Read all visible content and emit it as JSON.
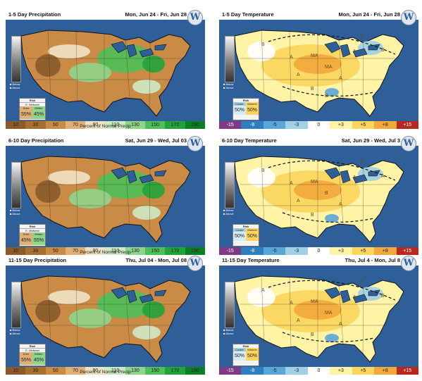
{
  "panels": [
    {
      "kind": "precip",
      "title": "1-5 Day Precipitation",
      "date_range": "Mon, Jun 24 - Fri, Jun 28",
      "logo": "W",
      "confidence": {
        "label": "Confidence",
        "levels": [
          "Below",
          "Above"
        ]
      },
      "risk": {
        "title": "Risk",
        "subtitle": "E. Midwest",
        "labels": [
          "Drier",
          "Wetter"
        ],
        "values": [
          "55%",
          "45%"
        ]
      },
      "legend": [
        "10",
        "30",
        "50",
        "70",
        "90",
        "110",
        "130",
        "150",
        "170",
        "190"
      ],
      "legend_caption": "Percent of Normal Precip",
      "map_labels": []
    },
    {
      "kind": "temp",
      "title": "1-5 Day Temperature",
      "date_range": "Mon, Jun 24 - Fri, Jun 28",
      "logo": "W",
      "confidence": {
        "label": "Confidence",
        "levels": [
          "Below",
          "Above"
        ]
      },
      "risk": {
        "title": "Risk",
        "subtitle": "",
        "labels": [
          "Cooler",
          "Warmer"
        ],
        "values": [
          "50%",
          "50%"
        ]
      },
      "legend": [
        "-15",
        "-8",
        "-5",
        "-3",
        "0",
        "+3",
        "+5",
        "+8",
        "+15"
      ],
      "legend_caption": "",
      "map_labels": [
        "MA",
        "MA",
        "B",
        "B",
        "A",
        "A",
        "A",
        "A",
        "B",
        "B",
        "B"
      ]
    },
    {
      "kind": "precip",
      "title": "6-10 Day Precipitation",
      "date_range": "Sat, Jun 29 - Wed, Jul 03",
      "logo": "W",
      "confidence": {
        "label": "Confidence",
        "levels": [
          "Below",
          "Above"
        ]
      },
      "risk": {
        "title": "Risk",
        "subtitle": "E. Midwest",
        "labels": [
          "Drier",
          "Wetter"
        ],
        "values": [
          "45%",
          "55%"
        ]
      },
      "legend": [
        "10",
        "30",
        "50",
        "70",
        "90",
        "110",
        "130",
        "150",
        "170",
        "190"
      ],
      "legend_caption": "Percent of Normal Precip",
      "map_labels": []
    },
    {
      "kind": "temp",
      "title": "6-10 Day Temperature",
      "date_range": "Sat, Jun 29 - Wed, Jul 3",
      "logo": "W",
      "confidence": {
        "label": "Confidence",
        "levels": [
          "Below",
          "Above"
        ]
      },
      "risk": {
        "title": "Risk",
        "subtitle": "",
        "labels": [
          "Cooler",
          "Warmer"
        ],
        "values": [
          "50%",
          "50%"
        ]
      },
      "legend": [
        "-15",
        "-8",
        "-5",
        "-3",
        "0",
        "+3",
        "+5",
        "+8",
        "+15"
      ],
      "legend_caption": "",
      "map_labels": [
        "MA",
        "B",
        "B",
        "A",
        "A",
        "A",
        "A",
        "A",
        "B",
        "B"
      ]
    },
    {
      "kind": "precip",
      "title": "11-15 Day Precipitation",
      "date_range": "Thu, Jul 04 - Mon, Jul 08",
      "logo": "W",
      "confidence": {
        "label": "Confidence",
        "levels": [
          "Below",
          "Above"
        ]
      },
      "risk": {
        "title": "Risk",
        "subtitle": "E. Midwest",
        "labels": [
          "Drier",
          "Wetter"
        ],
        "values": [
          "55%",
          "45%"
        ]
      },
      "legend": [
        "10",
        "30",
        "50",
        "70",
        "90",
        "110",
        "130",
        "150",
        "170",
        "190"
      ],
      "legend_caption": "Percent of Normal Precip",
      "map_labels": []
    },
    {
      "kind": "temp",
      "title": "11-15 Day Temperature",
      "date_range": "Thu, Jul 4 - Mon, Jul 8",
      "logo": "W",
      "confidence": {
        "label": "Confidence",
        "levels": [
          "Below",
          "Above"
        ]
      },
      "risk": {
        "title": "Risk",
        "subtitle": "",
        "labels": [
          "Cooler",
          "Warmer"
        ],
        "values": [
          "50%",
          "50%"
        ]
      },
      "legend": [
        "-15",
        "-8",
        "-5",
        "-3",
        "0",
        "+3",
        "+5",
        "+8",
        "+15"
      ],
      "legend_caption": "",
      "map_labels": [
        "MA",
        "MA",
        "B",
        "B",
        "A",
        "A",
        "A",
        "A",
        "A",
        "B"
      ]
    }
  ],
  "colors": {
    "ocean": "#2f5f99",
    "precip_legend": [
      "#8a5a2b",
      "#a8702f",
      "#c98b45",
      "#deb078",
      "#efe2c4",
      "#cfe9c4",
      "#8fd48a",
      "#4cbf58",
      "#22a33a",
      "#0c7f24"
    ],
    "temp_legend": [
      "#7e3a85",
      "#2e7fc0",
      "#5aa6d8",
      "#9fd0e6",
      "#ffffff",
      "#fff3a6",
      "#fbd55c",
      "#f2a93b",
      "#b8281e"
    ]
  }
}
